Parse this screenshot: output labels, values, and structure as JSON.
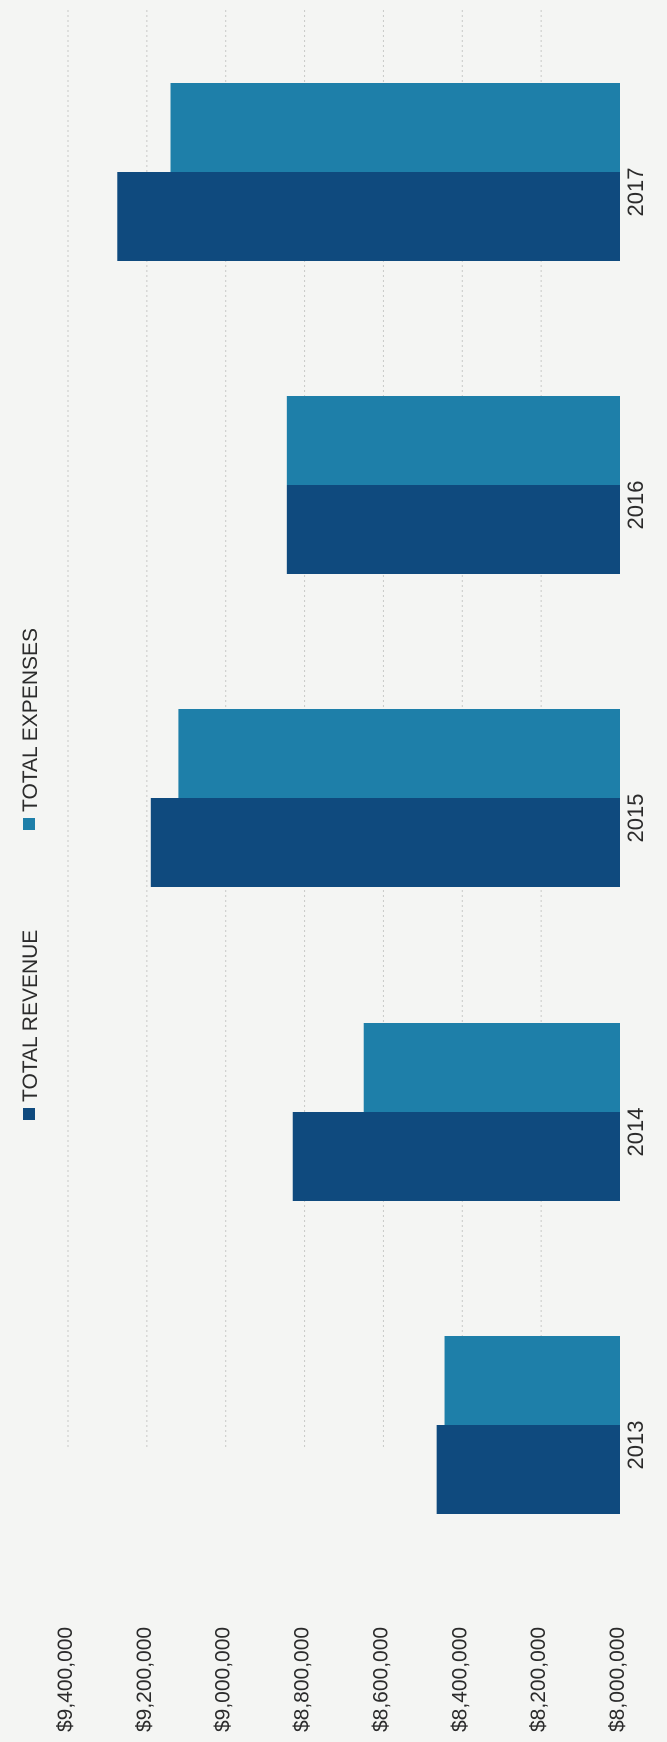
{
  "chart_data": {
    "type": "bar",
    "orientation": "rotated-90-clockwise",
    "title": "",
    "xlabel": "",
    "ylabel": "",
    "categories": [
      "2013",
      "2014",
      "2015",
      "2016",
      "2017"
    ],
    "series": [
      {
        "name": "TOTAL REVENUE",
        "color": "#0f4a7e",
        "values": [
          8465000,
          8830000,
          9190000,
          8845000,
          9275000
        ]
      },
      {
        "name": "TOTAL EXPENSES",
        "color": "#1e7fa9",
        "values": [
          8445000,
          8650000,
          9120000,
          8845000,
          9140000
        ]
      }
    ],
    "ylim": [
      8000000,
      9400000
    ],
    "yticks": [
      {
        "value": 9400000,
        "label": "$9,400,000"
      },
      {
        "value": 9200000,
        "label": "$9,200,000"
      },
      {
        "value": 9000000,
        "label": "$9,000,000"
      },
      {
        "value": 8800000,
        "label": "$8,800,000"
      },
      {
        "value": 8600000,
        "label": "$8,600,000"
      },
      {
        "value": 8400000,
        "label": "$8,400,000"
      },
      {
        "value": 8200000,
        "label": "$8,200,000"
      },
      {
        "value": 8000000,
        "label": "$8,000,000"
      }
    ],
    "grid": true,
    "legend": "top"
  }
}
